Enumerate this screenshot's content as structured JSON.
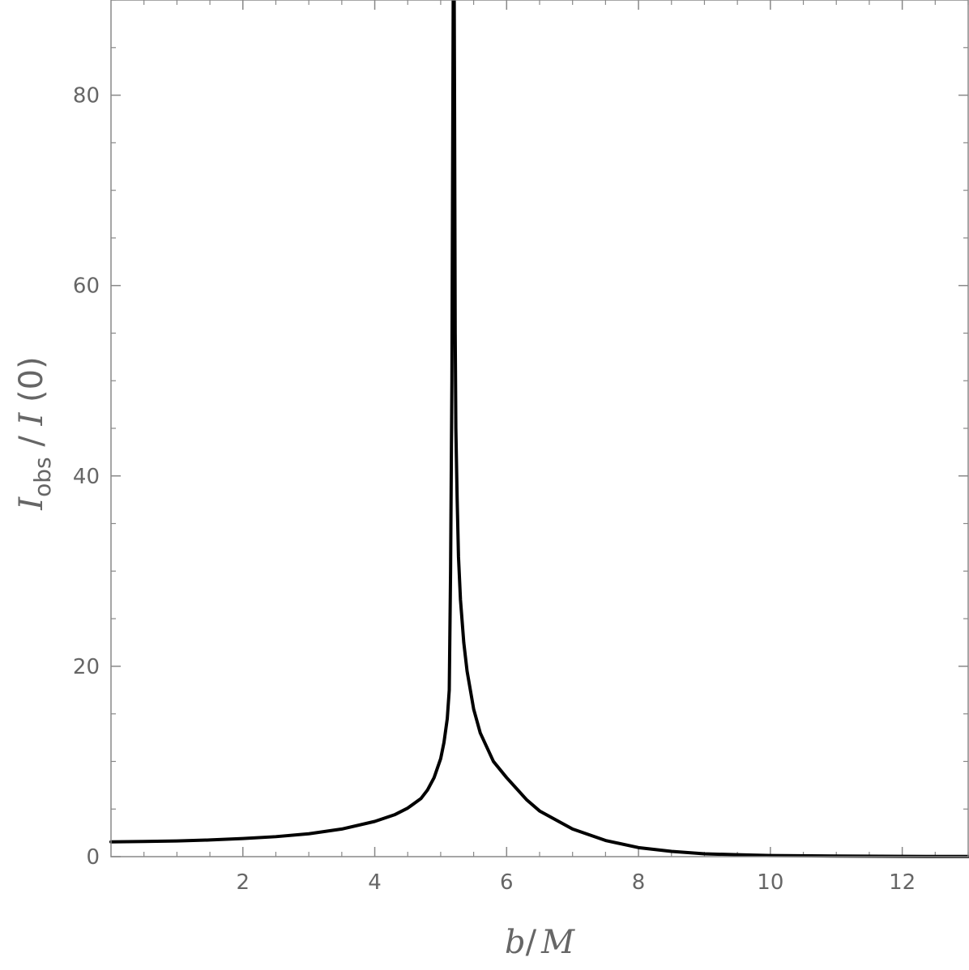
{
  "chart_data": {
    "type": "line",
    "title": "",
    "xlabel": {
      "b": "b",
      "sep": "/",
      "M": "M"
    },
    "ylabel": {
      "I": "I",
      "sub": "obs",
      "sep": " / ",
      "I0": "I",
      "arg": " (0)"
    },
    "xlim": [
      0,
      13
    ],
    "ylim": [
      0,
      90
    ],
    "x_ticks": [
      2,
      4,
      6,
      8,
      10,
      12
    ],
    "y_ticks": [
      0,
      20,
      40,
      60,
      80
    ],
    "x_tick_labels": [
      "2",
      "4",
      "6",
      "8",
      "10",
      "12"
    ],
    "y_tick_labels": [
      "0",
      "20",
      "40",
      "60",
      "80"
    ],
    "grid": false,
    "frame": true,
    "series": [
      {
        "color": "#000000",
        "x": [
          0.0,
          0.5,
          1.0,
          1.5,
          2.0,
          2.5,
          3.0,
          3.5,
          4.0,
          4.3,
          4.5,
          4.7,
          4.8,
          4.9,
          5.0,
          5.05,
          5.1,
          5.13,
          5.15,
          5.17,
          5.18,
          5.19,
          5.2,
          5.205,
          5.21,
          5.22,
          5.23,
          5.25,
          5.27,
          5.3,
          5.35,
          5.4,
          5.5,
          5.6,
          5.8,
          6.0,
          6.3,
          6.5,
          7.0,
          7.5,
          8.0,
          8.5,
          9.0,
          9.5,
          10.0,
          11.0,
          12.0,
          13.0
        ],
        "y": [
          1.55,
          1.6,
          1.65,
          1.75,
          1.9,
          2.1,
          2.4,
          2.9,
          3.7,
          4.4,
          5.1,
          6.1,
          7.0,
          8.3,
          10.3,
          12.0,
          14.5,
          17.5,
          30.0,
          50.0,
          70.0,
          90.0,
          90.0,
          90.0,
          80.0,
          55.0,
          45.0,
          37.5,
          31.5,
          27.0,
          22.5,
          19.5,
          15.5,
          13.0,
          10.0,
          8.3,
          6.0,
          4.8,
          2.9,
          1.7,
          0.95,
          0.55,
          0.3,
          0.2,
          0.12,
          0.06,
          0.03,
          0.02
        ]
      }
    ]
  }
}
